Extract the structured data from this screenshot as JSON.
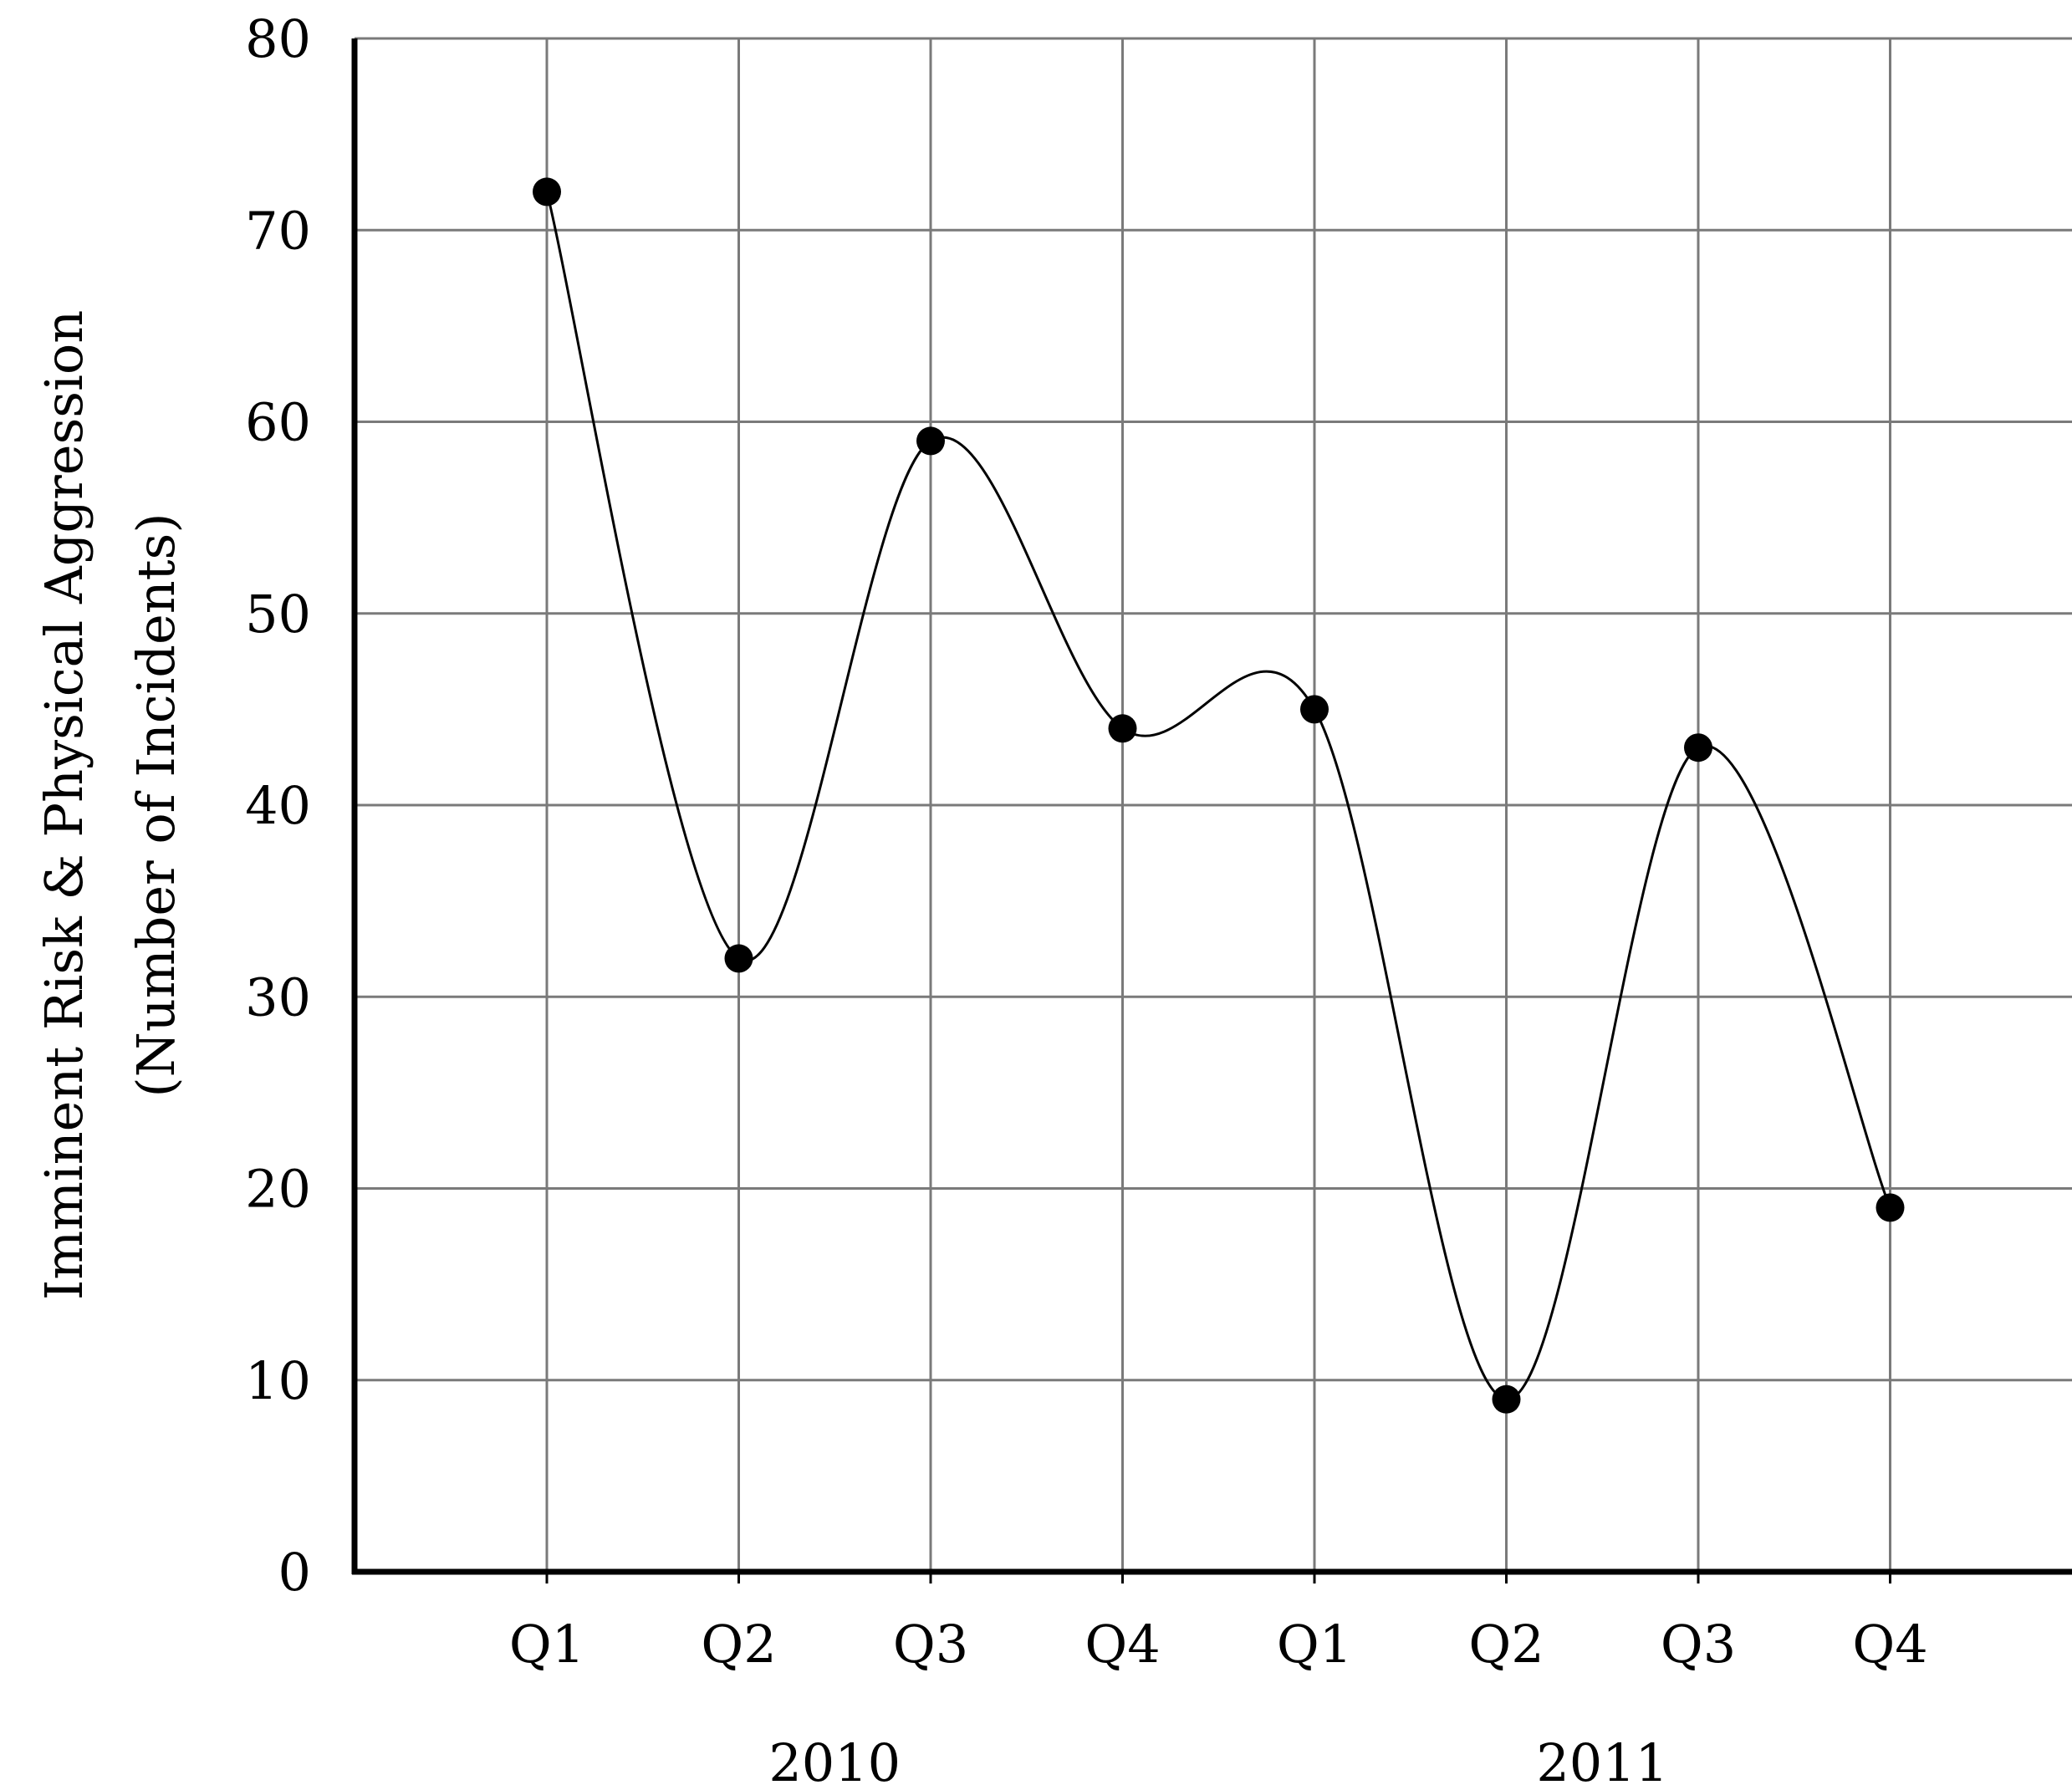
{
  "chart_data": {
    "type": "line",
    "title": "",
    "ylabel": "Imminent Risk & Physical Aggression",
    "ylabel_line2": "(Number of Incidents)",
    "categories": [
      "Q1",
      "Q2",
      "Q3",
      "Q4",
      "Q1",
      "Q2",
      "Q3",
      "Q4"
    ],
    "groups": [
      {
        "label": "2010",
        "categories": [
          0,
          3
        ]
      },
      {
        "label": "2011",
        "categories": [
          4,
          7
        ]
      }
    ],
    "series": [
      {
        "values": [
          72,
          32,
          59,
          44,
          45,
          9,
          43,
          19
        ]
      }
    ],
    "ylim": [
      0,
      80
    ],
    "yticks": [
      0,
      10,
      20,
      30,
      40,
      50,
      60,
      70,
      80
    ],
    "grid": true,
    "legend": "none",
    "line_color": "#000000",
    "grid_color": "#7a7a7a"
  }
}
